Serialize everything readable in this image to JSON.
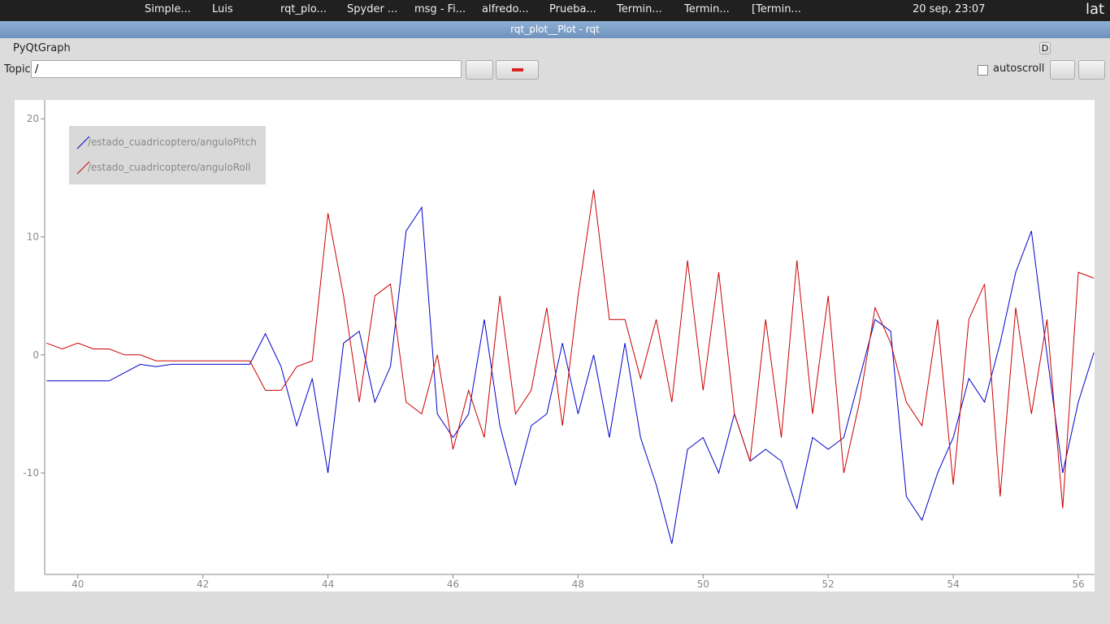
{
  "taskbar": {
    "items": [
      "Simple...",
      "Luis",
      "rqt_plo...",
      "Spyder ...",
      "msg - Fi...",
      "alfredo...",
      "Prueba...",
      "Termin...",
      "Termin...",
      "[Termin..."
    ],
    "clock": "20 sep, 23:07",
    "layout": "lat"
  },
  "window": {
    "title": "rqt_plot__Plot - rqt",
    "plugin": "PyQtGraph",
    "plugin_button": "D",
    "topic_label": "Topic",
    "topic_value": "/",
    "autoscroll": "autoscroll"
  },
  "chart_data": {
    "type": "line",
    "x": [
      39.5,
      39.75,
      40,
      40.25,
      40.5,
      40.75,
      41,
      41.25,
      41.5,
      41.75,
      42,
      42.25,
      42.5,
      42.75,
      43,
      43.25,
      43.5,
      43.75,
      44,
      44.25,
      44.5,
      44.75,
      45,
      45.25,
      45.5,
      45.75,
      46,
      46.25,
      46.5,
      46.75,
      47,
      47.25,
      47.5,
      47.75,
      48,
      48.25,
      48.5,
      48.75,
      49,
      49.25,
      49.5,
      49.75,
      50,
      50.25,
      50.5,
      50.75,
      51,
      51.25,
      51.5,
      51.75,
      52,
      52.25,
      52.5,
      52.75,
      53,
      53.25,
      53.5,
      53.75,
      54,
      54.25,
      54.5,
      54.75,
      55,
      55.25,
      55.5,
      55.75,
      56,
      56.25
    ],
    "series": [
      {
        "name": "/estado_cuadricoptero/anguloPitch",
        "color": "#0000cc",
        "values": [
          -2.2,
          -2.2,
          -2.2,
          -2.2,
          -2.2,
          -1.5,
          -0.8,
          -1,
          -0.8,
          -0.8,
          -0.8,
          -0.8,
          -0.8,
          -0.8,
          1.8,
          -1,
          -6,
          -2,
          -10,
          1,
          2,
          -4,
          -1,
          10.5,
          12.5,
          -5,
          -7,
          -5,
          3,
          -6,
          -11,
          -6,
          -5,
          1,
          -5,
          0,
          -7,
          1,
          -7,
          -11,
          -16,
          -8,
          -7,
          -10,
          -5,
          -9,
          -8,
          -9,
          -13,
          -7,
          -8,
          -7,
          -2,
          3,
          2,
          -12,
          -14,
          -10,
          -7,
          -2,
          -4,
          1,
          7,
          10.5,
          0,
          -10,
          -4,
          0.2
        ]
      },
      {
        "name": "/estado_cuadricoptero/anguloRoll",
        "color": "#cc0000",
        "values": [
          1,
          0.5,
          1,
          0.5,
          0.5,
          0,
          0,
          -0.5,
          -0.5,
          -0.5,
          -0.5,
          -0.5,
          -0.5,
          -0.5,
          -3,
          -3,
          -1,
          -0.5,
          12,
          5,
          -4,
          5,
          6,
          -4,
          -5,
          0,
          -8,
          -3,
          -7,
          5,
          -5,
          -3,
          4,
          -6,
          5,
          14,
          3,
          3,
          -2,
          3,
          -4,
          8,
          -3,
          7,
          -5,
          -9,
          3,
          -7,
          8,
          -5,
          5,
          -10,
          -4,
          4,
          1,
          -4,
          -6,
          3,
          -11,
          3,
          6,
          -12,
          4,
          -5,
          3,
          -13,
          7,
          6.5
        ]
      }
    ],
    "xlim": [
      39.47,
      56.26
    ],
    "ylim": [
      -18.6,
      21.6
    ],
    "xticks": [
      40,
      42,
      44,
      46,
      48,
      50,
      52,
      54,
      56
    ],
    "yticks": [
      -10,
      0,
      10,
      20
    ]
  }
}
